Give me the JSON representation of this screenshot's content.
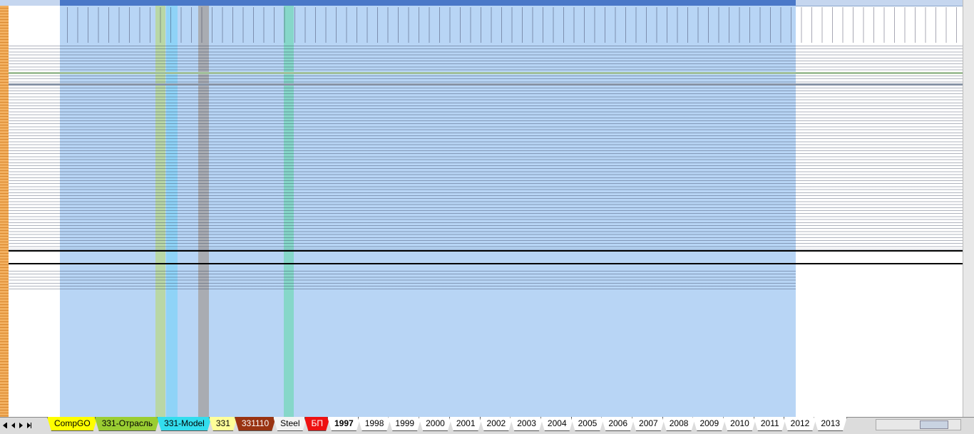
{
  "sheet_tabs": [
    "CompGO",
    "331-Отрасль",
    "331-Model",
    "331",
    "331110",
    "Steel",
    "БП",
    "1997",
    "1998",
    "1999",
    "2000",
    "2001",
    "2002",
    "2003",
    "2004",
    "2005",
    "2006",
    "2007",
    "2008",
    "2009",
    "2010",
    "2011",
    "2012",
    "2013"
  ],
  "active_tab": 7
}
